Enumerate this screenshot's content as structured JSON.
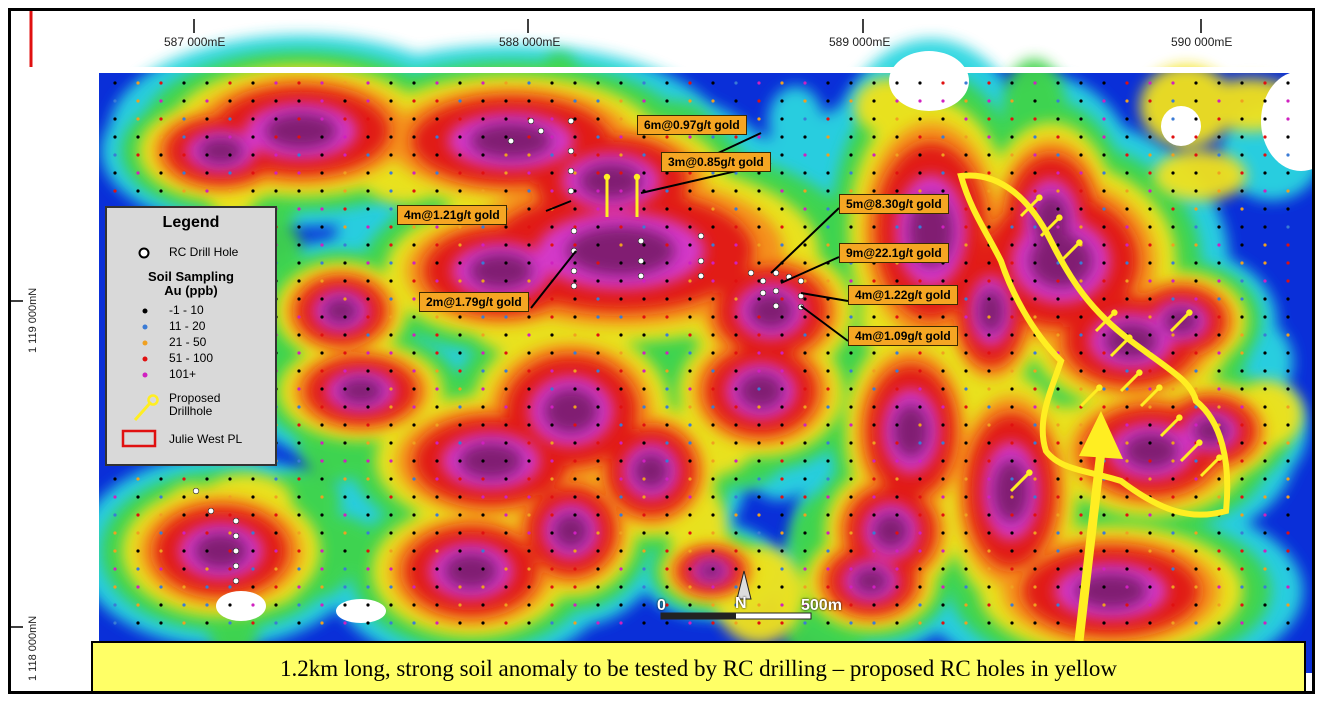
{
  "grid": {
    "eastings": [
      "587 000mE",
      "588 000mE",
      "589 000mE",
      "590 000mE"
    ],
    "northings": [
      "1 119 000mN",
      "1 118 000mN"
    ]
  },
  "legend": {
    "title": "Legend",
    "rc_drill_hole": "RC Drill Hole",
    "soil_title_line1": "Soil Sampling",
    "soil_title_line2": "Au (ppb)",
    "classes": [
      {
        "label": "-1 - 10",
        "color": "#000000"
      },
      {
        "label": "11 - 20",
        "color": "#3a7bd5"
      },
      {
        "label": "21 - 50",
        "color": "#f0a020"
      },
      {
        "label": "51 - 100",
        "color": "#e01010"
      },
      {
        "label": "101+",
        "color": "#d020c0"
      }
    ],
    "proposed_line1": "Proposed",
    "proposed_line2": "Drillhole",
    "tenement": "Julie West PL"
  },
  "callouts": [
    "6m@0.97g/t gold",
    "3m@0.85g/t gold",
    "4m@1.21g/t gold",
    "2m@1.79g/t gold",
    "5m@8.30g/t gold",
    "9m@22.1g/t gold",
    "4m@1.22g/t gold",
    "4m@1.09g/t gold"
  ],
  "scale": {
    "start": "0",
    "end": "500m",
    "north": "N"
  },
  "banner": "1.2km long, strong soil anomaly to be tested by RC drilling – proposed RC holes in yellow",
  "colors": {
    "background_low": "#0a2fd8",
    "cyan": "#29d6e0",
    "green": "#3fd44a",
    "yellow": "#f2e21a",
    "orange": "#f58a1a",
    "red": "#e01818",
    "magenta": "#d33ad3",
    "purple": "#7d1d6e",
    "proposed": "#ffee22",
    "tenement_border": "#e01010",
    "callout_fill": "#f5a623"
  }
}
